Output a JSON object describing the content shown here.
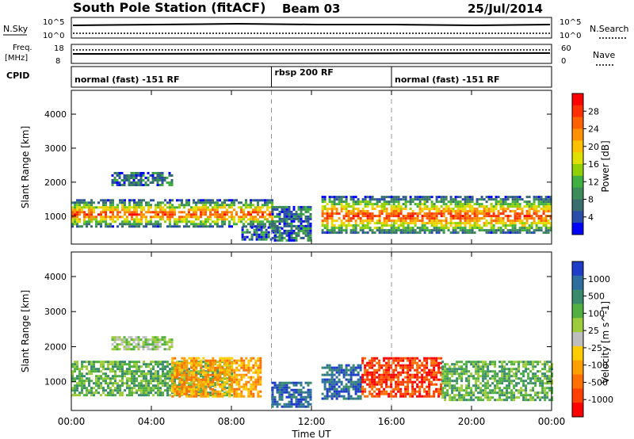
{
  "header": {
    "station": "South Pole Station (fitACF)",
    "beam": "Beam 03",
    "date": "25/Jul/2014"
  },
  "noise_panel": {
    "left_label": "N.Sky",
    "right_label": "N.Search",
    "left_ticks": [
      "10^5",
      "10^0"
    ],
    "right_ticks": [
      "10^5",
      "10^0"
    ]
  },
  "freq_panel": {
    "left_label_top": "Freq.",
    "left_label_bottom": "[MHz]",
    "right_label": "Nave",
    "left_ticks": [
      "18",
      "8"
    ],
    "right_ticks": [
      "60",
      "0"
    ]
  },
  "cpid": {
    "label": "CPID",
    "segments": [
      {
        "start_hour": 0,
        "end_hour": 10,
        "text": "normal (fast) -151 RF"
      },
      {
        "start_hour": 10,
        "end_hour": 16,
        "text": "rbsp 200 RF"
      },
      {
        "start_hour": 16,
        "end_hour": 24,
        "text": "normal (fast) -151 RF"
      }
    ]
  },
  "colorbars": {
    "power": {
      "label": "Power [dB]",
      "ticks": [
        "28",
        "24",
        "20",
        "16",
        "12",
        "8",
        "4"
      ],
      "colors": [
        "#ff0000",
        "#ff3000",
        "#ff6000",
        "#ff9000",
        "#ffc000",
        "#e0e000",
        "#90d000",
        "#40b040",
        "#3c8c5a",
        "#3a6e6e",
        "#2a4ea8",
        "#0000ff"
      ]
    },
    "velocity": {
      "label": "Velocity [m s^-1]",
      "ticks": [
        "1000",
        "500",
        "100",
        "25",
        "-25",
        "-100",
        "-500",
        "-1000"
      ],
      "colors": [
        "#1e3cc8",
        "#2e6e9e",
        "#3a8a6e",
        "#52b040",
        "#9ccc3c",
        "#bebebe",
        "#ffcc00",
        "#ffa000",
        "#ff7000",
        "#ff4000",
        "#ff0000"
      ]
    }
  },
  "chart_data": [
    {
      "type": "heatmap",
      "title": "Power",
      "xlabel": "Time UT",
      "ylabel": "Slant Range [km]",
      "xlim_hours": [
        0,
        24
      ],
      "ylim_km": [
        180,
        4700
      ],
      "x_tick_labels": [
        "00:00",
        "04:00",
        "08:00",
        "12:00",
        "16:00",
        "20:00",
        "00:00"
      ],
      "y_tick_labels": [
        "1000",
        "2000",
        "3000",
        "4000"
      ],
      "colorbar": "power",
      "regions": [
        {
          "t0": 0.0,
          "t1": 10.0,
          "r0": 700,
          "r1": 1500,
          "level": "high"
        },
        {
          "t0": 2.0,
          "t1": 5.0,
          "r0": 1900,
          "r1": 2300,
          "level": "low"
        },
        {
          "t0": 8.5,
          "t1": 10.5,
          "r0": 300,
          "r1": 700,
          "level": "low"
        },
        {
          "t0": 10.0,
          "t1": 12.0,
          "r0": 300,
          "r1": 1300,
          "level": "low"
        },
        {
          "t0": 12.5,
          "t1": 24.0,
          "r0": 500,
          "r1": 1600,
          "level": "high"
        }
      ]
    },
    {
      "type": "heatmap",
      "title": "Velocity",
      "xlabel": "Time UT",
      "ylabel": "Slant Range [km]",
      "xlim_hours": [
        0,
        24
      ],
      "ylim_km": [
        180,
        4700
      ],
      "x_tick_labels": [
        "00:00",
        "04:00",
        "08:00",
        "12:00",
        "16:00",
        "20:00",
        "00:00"
      ],
      "y_tick_labels": [
        "1000",
        "2000",
        "3000",
        "4000"
      ],
      "colorbar": "velocity",
      "regions": [
        {
          "t0": 0.0,
          "t1": 8.0,
          "r0": 600,
          "r1": 1600,
          "v": 100
        },
        {
          "t0": 2.0,
          "t1": 5.0,
          "r0": 1900,
          "r1": 2300,
          "v": 25
        },
        {
          "t0": 5.0,
          "t1": 9.5,
          "r0": 600,
          "r1": 1700,
          "v": -100
        },
        {
          "t0": 10.0,
          "t1": 12.0,
          "r0": 300,
          "r1": 1000,
          "v": 500
        },
        {
          "t0": 12.5,
          "t1": 14.5,
          "r0": 500,
          "r1": 1500,
          "v": 500
        },
        {
          "t0": 14.5,
          "t1": 18.5,
          "r0": 600,
          "r1": 1700,
          "v": -500
        },
        {
          "t0": 18.5,
          "t1": 24.0,
          "r0": 500,
          "r1": 1600,
          "v": 100
        }
      ]
    }
  ]
}
